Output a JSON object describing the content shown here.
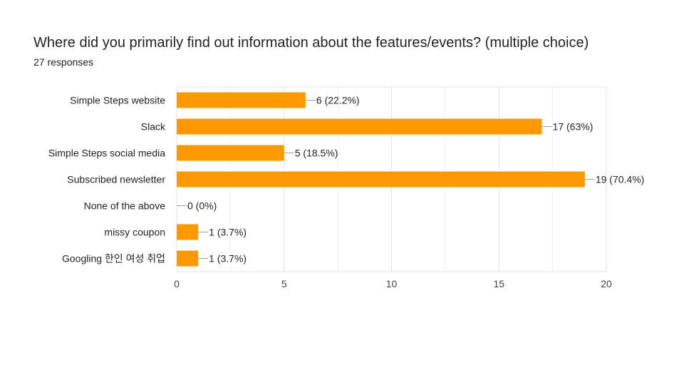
{
  "header": {
    "title": "Where did you primarily find out information about the features/events?  (multiple choice)",
    "subtitle": "27 responses"
  },
  "chart_data": {
    "type": "bar",
    "orientation": "horizontal",
    "title": "Where did you primarily find out information about the features/events?  (multiple choice)",
    "subtitle": "27 responses",
    "categories": [
      "Simple Steps website",
      "Slack",
      "Simple Steps social media",
      "Subscribed newsletter",
      "None of the above",
      "missy coupon",
      "Googling 한인 여성 취업"
    ],
    "values": [
      6,
      17,
      5,
      19,
      0,
      1,
      1
    ],
    "data_labels": [
      "6 (22.2%)",
      "17 (63%)",
      "5 (18.5%)",
      "19 (70.4%)",
      "0 (0%)",
      "1 (3.7%)",
      "1 (3.7%)"
    ],
    "xlim": [
      0,
      20
    ],
    "xticks": [
      0,
      5,
      10,
      15,
      20
    ],
    "xlabel": "",
    "ylabel": "",
    "grid": true,
    "bar_color": "#ff9900"
  }
}
